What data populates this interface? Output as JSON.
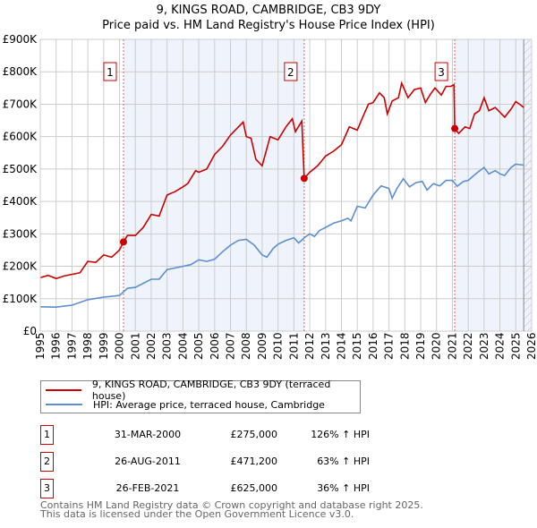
{
  "chart_data": {
    "type": "line",
    "title": "9, KINGS ROAD, CAMBRIDGE, CB3 9DY",
    "subtitle": "Price paid vs. HM Land Registry's House Price Index (HPI)",
    "xlim": [
      1995,
      2026
    ],
    "ylim": [
      0,
      900000
    ],
    "yticks": [
      "£0",
      "£100K",
      "£200K",
      "£300K",
      "£400K",
      "£500K",
      "£600K",
      "£700K",
      "£800K",
      "£900K"
    ],
    "xticks": [
      "1995",
      "1996",
      "1997",
      "1998",
      "1999",
      "2000",
      "2001",
      "2002",
      "2003",
      "2004",
      "2005",
      "2006",
      "2007",
      "2008",
      "2009",
      "2010",
      "2011",
      "2012",
      "2013",
      "2014",
      "2015",
      "2016",
      "2017",
      "2018",
      "2019",
      "2020",
      "2021",
      "2022",
      "2023",
      "2024",
      "2025",
      "2026"
    ],
    "grid": true,
    "series": [
      {
        "name": "9, KINGS ROAD, CAMBRIDGE, CB3 9DY (terraced house)",
        "color": "#cc0000",
        "x": [
          1995,
          1995.5,
          1996,
          1996.5,
          1997,
          1997.5,
          1998,
          1998.5,
          1999,
          1999.5,
          2000,
          2000.25,
          2000.5,
          2001,
          2001.5,
          2002,
          2002.5,
          2003,
          2003.5,
          2004,
          2004.3,
          2004.8,
          2005,
          2005.5,
          2006,
          2006.5,
          2007,
          2007.5,
          2007.8,
          2008,
          2008.3,
          2008.6,
          2009,
          2009.5,
          2010,
          2010.5,
          2010.9,
          2011.1,
          2011.5,
          2011.65,
          2012,
          2012.5,
          2013,
          2013.5,
          2014,
          2014.5,
          2015,
          2015.3,
          2015.7,
          2016,
          2016.4,
          2016.7,
          2016.9,
          2017.2,
          2017.6,
          2017.8,
          2018.2,
          2018.6,
          2019,
          2019.3,
          2019.6,
          2019.9,
          2020.3,
          2020.6,
          2020.9,
          2021.1,
          2021.15,
          2021.4,
          2021.8,
          2022.1,
          2022.4,
          2022.7,
          2023,
          2023.3,
          2023.7,
          2024,
          2024.3,
          2024.7,
          2025,
          2025.3,
          2025.5
        ],
        "y": [
          165,
          172,
          162,
          170,
          175,
          180,
          215,
          212,
          235,
          228,
          250,
          275,
          295,
          295,
          320,
          360,
          355,
          420,
          430,
          445,
          455,
          495,
          490,
          500,
          545,
          570,
          605,
          630,
          645,
          600,
          595,
          530,
          510,
          600,
          590,
          630,
          655,
          615,
          648,
          471,
          490,
          510,
          540,
          555,
          575,
          630,
          620,
          655,
          700,
          705,
          735,
          720,
          670,
          710,
          720,
          765,
          720,
          745,
          750,
          705,
          730,
          750,
          728,
          755,
          755,
          760,
          625,
          610,
          630,
          625,
          670,
          680,
          720,
          680,
          690,
          675,
          660,
          685,
          708,
          698,
          690
        ]
      },
      {
        "name": "HPI: Average price, terraced house, Cambridge",
        "color": "#5b8fd4",
        "x": [
          1995,
          1996,
          1997,
          1998,
          1999,
          2000,
          2000.5,
          2001,
          2002,
          2002.5,
          2003,
          2004,
          2004.5,
          2005,
          2005.5,
          2006,
          2006.5,
          2007,
          2007.5,
          2008,
          2008.5,
          2009,
          2009.3,
          2009.7,
          2010,
          2010.5,
          2011,
          2011.3,
          2011.7,
          2012,
          2012.3,
          2012.6,
          2013,
          2013.5,
          2014,
          2014.4,
          2014.6,
          2015,
          2015.5,
          2016,
          2016.5,
          2017,
          2017.2,
          2017.5,
          2017.9,
          2018.3,
          2018.7,
          2019.1,
          2019.4,
          2019.8,
          2020.2,
          2020.6,
          2021,
          2021.3,
          2021.7,
          2022,
          2022.3,
          2022.6,
          2023,
          2023.3,
          2023.7,
          2024,
          2024.3,
          2024.7,
          2025,
          2025.5
        ],
        "y": [
          75,
          74,
          80,
          97,
          105,
          110,
          132,
          135,
          160,
          160,
          190,
          200,
          205,
          220,
          215,
          222,
          245,
          265,
          280,
          283,
          265,
          235,
          228,
          255,
          268,
          280,
          288,
          272,
          290,
          300,
          292,
          310,
          320,
          333,
          340,
          348,
          340,
          385,
          380,
          420,
          448,
          440,
          410,
          440,
          470,
          445,
          458,
          462,
          435,
          455,
          448,
          465,
          465,
          447,
          462,
          465,
          478,
          490,
          505,
          485,
          495,
          485,
          480,
          505,
          515,
          512
        ]
      }
    ],
    "y_units": "thousands GBP",
    "sales": [
      {
        "label": "1",
        "x": 2000.25,
        "value": 275000
      },
      {
        "label": "2",
        "x": 2011.65,
        "value": 471200
      },
      {
        "label": "3",
        "x": 2021.15,
        "value": 625000
      }
    ],
    "legend_placement": "below"
  },
  "table": [
    {
      "num": "1",
      "date": "31-MAR-2000",
      "price": "£275,000",
      "pct": "126% ↑ HPI"
    },
    {
      "num": "2",
      "date": "26-AUG-2011",
      "price": "£471,200",
      "pct": "63% ↑ HPI"
    },
    {
      "num": "3",
      "date": "26-FEB-2021",
      "price": "£625,000",
      "pct": "36% ↑ HPI"
    }
  ],
  "footer": [
    "Contains HM Land Registry data © Crown copyright and database right 2025.",
    "This data is licensed under the Open Government Licence v3.0."
  ]
}
